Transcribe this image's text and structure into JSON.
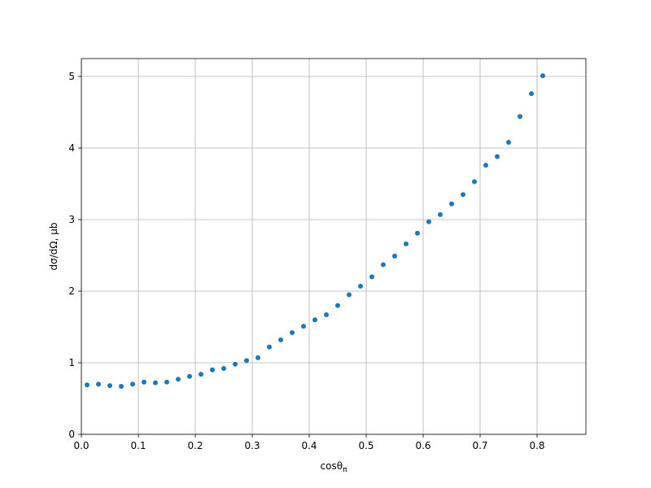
{
  "chart_data": {
    "type": "scatter",
    "x_label": {
      "text": "cosθ",
      "subscript": "π"
    },
    "y_label": "dσ/dΩ, μb",
    "x": [
      0.01,
      0.03,
      0.05,
      0.07,
      0.09,
      0.11,
      0.13,
      0.15,
      0.17,
      0.19,
      0.21,
      0.23,
      0.25,
      0.27,
      0.29,
      0.31,
      0.33,
      0.35,
      0.37,
      0.39,
      0.41,
      0.43,
      0.45,
      0.47,
      0.49,
      0.51,
      0.53,
      0.55,
      0.57,
      0.59,
      0.61,
      0.63,
      0.65,
      0.67,
      0.69,
      0.71,
      0.73,
      0.75,
      0.77,
      0.79,
      0.81
    ],
    "series": [
      {
        "color": "#1f77b4",
        "values": [
          0.69,
          0.7,
          0.68,
          0.67,
          0.7,
          0.73,
          0.72,
          0.73,
          0.77,
          0.81,
          0.84,
          0.9,
          0.92,
          0.98,
          1.03,
          1.07,
          1.22,
          1.32,
          1.42,
          1.51,
          1.6,
          1.67,
          1.8,
          1.95,
          2.07,
          2.2,
          2.37,
          2.49,
          2.66,
          2.81,
          2.97,
          3.07,
          3.22,
          3.35,
          3.53,
          3.76,
          3.88,
          4.08,
          4.44,
          4.76,
          5.01
        ]
      }
    ],
    "xlim": [
      0,
      0.8857
    ],
    "ylim": [
      0,
      5.25
    ],
    "xticks": [
      {
        "value": 0,
        "label": "0.0"
      },
      0.1,
      0.2,
      0.3,
      0.4,
      0.5,
      0.6,
      0.7,
      0.8
    ],
    "yticks": [
      0,
      1,
      2,
      3,
      4,
      5
    ],
    "grid": true
  }
}
